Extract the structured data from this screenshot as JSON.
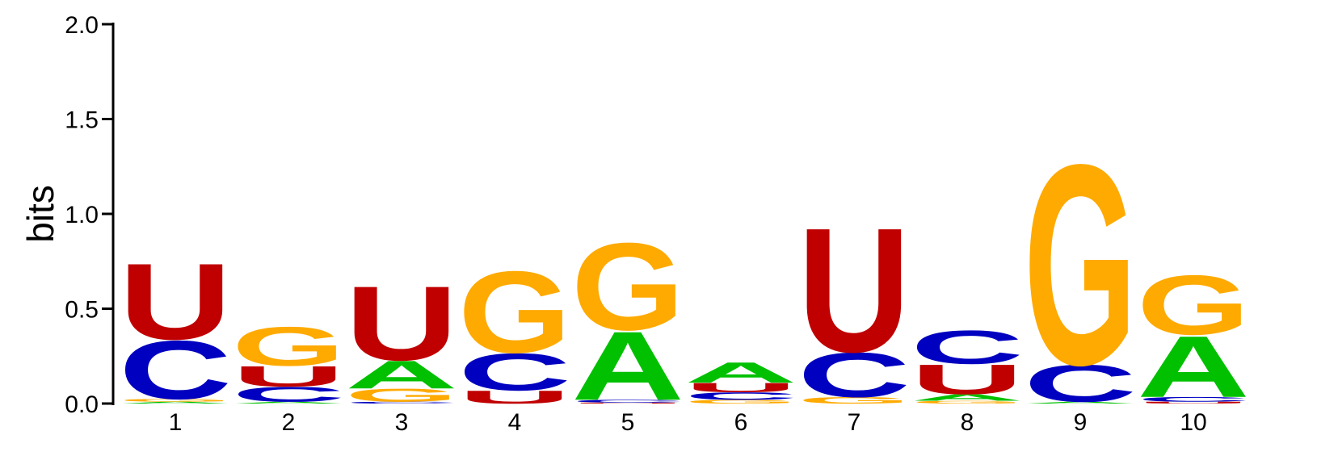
{
  "chart_data": {
    "type": "sequence-logo",
    "title": "",
    "xlabel": "",
    "ylabel": "bits",
    "ylim": [
      0,
      2.0
    ],
    "yticks": [
      "0.0",
      "0.5",
      "1.0",
      "1.5",
      "2.0"
    ],
    "ytick_values": [
      0,
      0.5,
      1.0,
      1.5,
      2.0
    ],
    "grid": false,
    "colors": {
      "A": "#00c000",
      "C": "#0000c0",
      "G": "#ffaa00",
      "U": "#c00000"
    },
    "positions": [
      {
        "label": "1",
        "stack": [
          {
            "letter": "A",
            "bits": 0.01
          },
          {
            "letter": "G",
            "bits": 0.015
          },
          {
            "letter": "C",
            "bits": 0.315
          },
          {
            "letter": "U",
            "bits": 0.41
          }
        ]
      },
      {
        "label": "2",
        "stack": [
          {
            "letter": "A",
            "bits": 0.01
          },
          {
            "letter": "C",
            "bits": 0.08
          },
          {
            "letter": "U",
            "bits": 0.11
          },
          {
            "letter": "G",
            "bits": 0.21
          }
        ]
      },
      {
        "label": "3",
        "stack": [
          {
            "letter": "C",
            "bits": 0.01
          },
          {
            "letter": "G",
            "bits": 0.07
          },
          {
            "letter": "A",
            "bits": 0.15
          },
          {
            "letter": "U",
            "bits": 0.4
          }
        ]
      },
      {
        "label": "4",
        "stack": [
          {
            "letter": "U",
            "bits": 0.07
          },
          {
            "letter": "C",
            "bits": 0.2
          },
          {
            "letter": "G",
            "bits": 0.44
          }
        ]
      },
      {
        "label": "5",
        "stack": [
          {
            "letter": "U",
            "bits": 0.005
          },
          {
            "letter": "C",
            "bits": 0.015
          },
          {
            "letter": "A",
            "bits": 0.37
          },
          {
            "letter": "G",
            "bits": 0.47
          }
        ]
      },
      {
        "label": "6",
        "stack": [
          {
            "letter": "G",
            "bits": 0.02
          },
          {
            "letter": "C",
            "bits": 0.04
          },
          {
            "letter": "U",
            "bits": 0.05
          },
          {
            "letter": "A",
            "bits": 0.11
          }
        ]
      },
      {
        "label": "7",
        "stack": [
          {
            "letter": "G",
            "bits": 0.035
          },
          {
            "letter": "C",
            "bits": 0.24
          },
          {
            "letter": "U",
            "bits": 0.67
          }
        ]
      },
      {
        "label": "8",
        "stack": [
          {
            "letter": "G",
            "bits": 0.015
          },
          {
            "letter": "A",
            "bits": 0.035
          },
          {
            "letter": "U",
            "bits": 0.16
          },
          {
            "letter": "C",
            "bits": 0.18
          }
        ]
      },
      {
        "label": "9",
        "stack": [
          {
            "letter": "A",
            "bits": 0.01
          },
          {
            "letter": "C",
            "bits": 0.2
          },
          {
            "letter": "G",
            "bits": 1.08
          }
        ]
      },
      {
        "label": "10",
        "stack": [
          {
            "letter": "U",
            "bits": 0.01
          },
          {
            "letter": "C",
            "bits": 0.025
          },
          {
            "letter": "A",
            "bits": 0.33
          },
          {
            "letter": "G",
            "bits": 0.32
          }
        ]
      }
    ]
  }
}
